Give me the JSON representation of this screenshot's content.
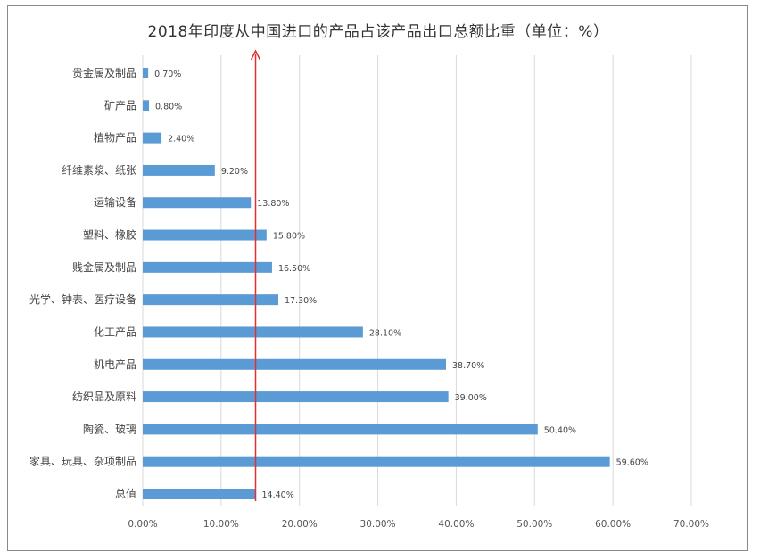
{
  "chart_data": {
    "type": "bar",
    "orientation": "horizontal",
    "title": "2018年印度从中国进口的产品占该产品出口总额比重（单位：%）",
    "categories": [
      "贵金属及制品",
      "矿产品",
      "植物产品",
      "纤维素浆、纸张",
      "运输设备",
      "塑料、橡胶",
      "贱金属及制品",
      "光学、钟表、医疗设备",
      "化工产品",
      "机电产品",
      "纺织品及原料",
      "陶瓷、玻璃",
      "家具、玩具、杂项制品",
      "总值"
    ],
    "values": [
      0.7,
      0.8,
      2.4,
      9.2,
      13.8,
      15.8,
      16.5,
      17.3,
      28.1,
      38.7,
      39.0,
      50.4,
      59.6,
      14.4
    ],
    "value_labels": [
      "0.70%",
      "0.80%",
      "2.40%",
      "9.20%",
      "13.80%",
      "15.80%",
      "16.50%",
      "17.30%",
      "28.10%",
      "38.70%",
      "39.00%",
      "50.40%",
      "59.60%",
      "14.40%"
    ],
    "xlim": [
      0,
      70
    ],
    "xticks": [
      0,
      10,
      20,
      30,
      40,
      50,
      60,
      70
    ],
    "xtick_labels": [
      "0.00%",
      "10.00%",
      "20.00%",
      "30.00%",
      "40.00%",
      "50.00%",
      "60.00%",
      "70.00%"
    ],
    "reference_line": {
      "value": 14.4,
      "color": "#e03030"
    },
    "grid": true,
    "bar_color": "#5b9bd5"
  }
}
